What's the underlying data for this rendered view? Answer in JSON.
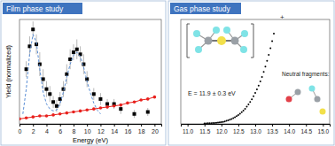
{
  "chart_data": [
    {
      "type": "scatter",
      "title": "Film phase study",
      "xlabel": "Energy (eV)",
      "ylabel": "Yield (normalized)",
      "xlim": [
        0,
        21
      ],
      "xticks": [
        0,
        2,
        4,
        6,
        8,
        10,
        12,
        14,
        16,
        18,
        20
      ],
      "ylim": [
        0,
        1.05
      ],
      "tick_labels": "x",
      "series": [
        {
          "type": "scatter",
          "color": "#000000",
          "marker": "square",
          "x": [
            1.0,
            1.5,
            2.0,
            2.5,
            3.0,
            3.5,
            4.0,
            4.5,
            5.0,
            5.5,
            6.0,
            6.5,
            7.0,
            7.5,
            8.0,
            8.5,
            9.0,
            9.5,
            10.0,
            11.0,
            12.0,
            13.0,
            14.0,
            15.0,
            17.0,
            19.0
          ],
          "values": [
            0.55,
            0.78,
            0.95,
            0.8,
            0.6,
            0.45,
            0.35,
            0.3,
            0.22,
            0.18,
            0.25,
            0.35,
            0.5,
            0.65,
            0.72,
            0.75,
            0.7,
            0.6,
            0.45,
            0.3,
            0.25,
            0.2,
            0.2,
            0.15,
            0.1,
            0.12
          ],
          "errors": [
            0.08,
            0.1,
            0.08,
            0.1,
            0.12,
            0.1,
            0.08,
            0.08,
            0.06,
            0.06,
            0.07,
            0.08,
            0.1,
            0.1,
            0.08,
            0.1,
            0.08,
            0.1,
            0.08,
            0.06,
            0.06,
            0.05,
            0.05,
            0.05,
            0.04,
            0.04
          ]
        },
        {
          "type": "line",
          "color": "#5b8fd6",
          "line_style": "dashed",
          "x": [
            0.5,
            1.0,
            1.5,
            2.0,
            2.5,
            3.0,
            3.5,
            4.0,
            4.5,
            5.0,
            5.5,
            6.0,
            6.5,
            7.0,
            7.5,
            8.0,
            8.5,
            9.0,
            9.5,
            10.0,
            10.5,
            11.0,
            11.5,
            12.0
          ],
          "values": [
            0.1,
            0.35,
            0.7,
            0.9,
            0.82,
            0.55,
            0.32,
            0.2,
            0.15,
            0.13,
            0.14,
            0.2,
            0.32,
            0.47,
            0.6,
            0.69,
            0.72,
            0.68,
            0.57,
            0.43,
            0.31,
            0.21,
            0.14,
            0.1
          ]
        },
        {
          "type": "line",
          "color": "#e8211d",
          "marker": "circle",
          "line_style": "solid",
          "x": [
            0,
            1,
            2,
            3,
            4,
            5,
            6,
            7,
            8,
            9,
            10,
            11,
            12,
            13,
            14,
            15,
            16,
            17,
            18,
            19,
            20
          ],
          "values": [
            0.05,
            0.06,
            0.07,
            0.08,
            0.08,
            0.09,
            0.1,
            0.11,
            0.12,
            0.13,
            0.14,
            0.15,
            0.16,
            0.17,
            0.18,
            0.19,
            0.21,
            0.22,
            0.24,
            0.25,
            0.27
          ]
        }
      ]
    },
    {
      "type": "scatter",
      "title": "Gas phase study",
      "xlim": [
        10.8,
        15.2
      ],
      "xticks": [
        {
          "value": 11,
          "label": "11.0"
        },
        {
          "value": 11.5,
          "label": "11.5"
        },
        {
          "value": 12,
          "label": "12.0"
        },
        {
          "value": 12.5,
          "label": "12.5"
        },
        {
          "value": 13,
          "label": "13.0"
        },
        {
          "value": 13.5,
          "label": "13.5"
        },
        {
          "value": 14,
          "label": "14.0"
        },
        {
          "value": 14.5,
          "label": "14.5"
        },
        {
          "value": 15,
          "label": "15.0"
        }
      ],
      "ylim": [
        0,
        1
      ],
      "tick_labels": "x",
      "annotations": [
        "E = 11.9 ± 0.3 eV",
        "+",
        "Neutral fragments:"
      ],
      "series": [
        {
          "type": "scatter",
          "color": "#000000",
          "marker": "circle",
          "x": [
            11.5,
            11.55,
            11.6,
            11.65,
            11.7,
            11.75,
            11.8,
            11.85,
            11.9,
            11.95,
            12.0,
            12.05,
            12.1,
            12.15,
            12.2,
            12.25,
            12.3,
            12.35,
            12.4,
            12.45,
            12.5,
            12.55,
            12.6,
            12.65,
            12.7,
            12.75,
            12.8,
            12.85,
            12.9,
            12.95,
            13.0,
            13.05,
            13.1,
            13.15,
            13.2,
            13.25,
            13.3,
            13.35,
            13.4,
            13.45,
            13.5,
            13.55
          ],
          "values": [
            0.005,
            0.005,
            0.006,
            0.006,
            0.007,
            0.008,
            0.009,
            0.01,
            0.012,
            0.014,
            0.017,
            0.02,
            0.024,
            0.029,
            0.034,
            0.04,
            0.047,
            0.055,
            0.064,
            0.074,
            0.085,
            0.098,
            0.112,
            0.128,
            0.145,
            0.165,
            0.186,
            0.21,
            0.236,
            0.265,
            0.296,
            0.33,
            0.367,
            0.407,
            0.45,
            0.497,
            0.548,
            0.603,
            0.662,
            0.725,
            0.792,
            0.864
          ]
        }
      ]
    }
  ]
}
